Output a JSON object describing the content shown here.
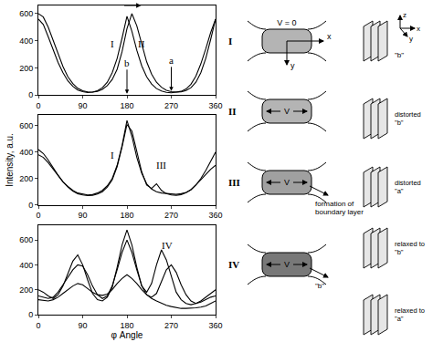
{
  "chart_data": [
    {
      "type": "line",
      "x": [
        0,
        10,
        20,
        30,
        40,
        50,
        60,
        70,
        80,
        90,
        100,
        110,
        120,
        130,
        140,
        150,
        160,
        170,
        180,
        190,
        200,
        210,
        220,
        230,
        240,
        250,
        260,
        270,
        280,
        290,
        300,
        310,
        320,
        330,
        340,
        350,
        360
      ],
      "xlim": [
        0,
        360
      ],
      "xticks": [
        0,
        90,
        180,
        270,
        360
      ],
      "ylim": [
        0,
        660
      ],
      "yticks": [
        0,
        200,
        400,
        600
      ],
      "grid": false,
      "series": [
        {
          "name": "I",
          "color": "#000000",
          "values": [
            560,
            520,
            430,
            330,
            240,
            165,
            105,
            65,
            38,
            26,
            20,
            22,
            32,
            55,
            95,
            165,
            270,
            420,
            580,
            470,
            330,
            215,
            135,
            82,
            48,
            30,
            20,
            17,
            20,
            28,
            45,
            80,
            140,
            230,
            340,
            460,
            560
          ]
        },
        {
          "name": "II",
          "color": "#000000",
          "values": [
            600,
            575,
            500,
            400,
            300,
            210,
            135,
            85,
            50,
            32,
            24,
            22,
            28,
            42,
            70,
            115,
            190,
            320,
            490,
            600,
            510,
            370,
            245,
            155,
            95,
            58,
            36,
            26,
            22,
            24,
            34,
            55,
            95,
            165,
            270,
            410,
            560
          ]
        }
      ],
      "annotations": [
        {
          "text": "I",
          "x": 150,
          "y": 380
        },
        {
          "text": "II",
          "x": 210,
          "y": 380
        },
        {
          "text": "b",
          "x": 180,
          "y": 10,
          "arrow": true
        },
        {
          "text": "a",
          "x": 270,
          "y": 30,
          "arrow": true
        }
      ]
    },
    {
      "type": "line",
      "x": [
        0,
        10,
        20,
        30,
        40,
        50,
        60,
        70,
        80,
        90,
        100,
        110,
        120,
        130,
        140,
        150,
        160,
        170,
        180,
        190,
        200,
        210,
        220,
        230,
        240,
        250,
        260,
        270,
        280,
        290,
        300,
        310,
        320,
        330,
        340,
        350,
        360
      ],
      "xlim": [
        0,
        360
      ],
      "xticks": [
        0,
        90,
        180,
        270,
        360
      ],
      "ylim": [
        0,
        680
      ],
      "yticks": [
        0,
        200,
        400,
        600
      ],
      "grid": false,
      "y_label": "Intensity, a.u.",
      "series": [
        {
          "name": "I",
          "color": "#000000",
          "values": [
            380,
            360,
            320,
            270,
            220,
            175,
            140,
            110,
            90,
            80,
            75,
            78,
            90,
            110,
            145,
            200,
            300,
            450,
            640,
            520,
            360,
            240,
            160,
            120,
            100,
            90,
            85,
            80,
            80,
            85,
            95,
            115,
            150,
            190,
            230,
            270,
            300
          ]
        },
        {
          "name": "III",
          "color": "#000000",
          "values": [
            420,
            390,
            340,
            280,
            225,
            175,
            135,
            105,
            85,
            75,
            70,
            72,
            82,
            100,
            135,
            190,
            290,
            440,
            610,
            560,
            400,
            250,
            150,
            125,
            160,
            110,
            85,
            75,
            72,
            78,
            92,
            115,
            150,
            200,
            260,
            330,
            400
          ]
        }
      ],
      "annotations": [
        {
          "text": "I",
          "x": 150,
          "y": 380
        },
        {
          "text": "III",
          "x": 250,
          "y": 300
        }
      ]
    },
    {
      "type": "line",
      "x": [
        0,
        10,
        20,
        30,
        40,
        50,
        60,
        70,
        80,
        90,
        100,
        110,
        120,
        130,
        140,
        150,
        160,
        170,
        180,
        190,
        200,
        210,
        220,
        230,
        240,
        250,
        260,
        270,
        280,
        290,
        300,
        310,
        320,
        330,
        340,
        350,
        360
      ],
      "xlim": [
        0,
        360
      ],
      "xticks": [
        0,
        90,
        180,
        270,
        360
      ],
      "ylim": [
        0,
        720
      ],
      "yticks": [
        0,
        200,
        400,
        600
      ],
      "grid": false,
      "x_label": "φ Angle",
      "series": [
        {
          "color": "#000000",
          "values": [
            200,
            180,
            150,
            130,
            160,
            230,
            330,
            430,
            480,
            400,
            280,
            170,
            120,
            110,
            140,
            220,
            380,
            560,
            680,
            560,
            380,
            230,
            180,
            250,
            400,
            520,
            440,
            300,
            180,
            120,
            90,
            80,
            90,
            110,
            140,
            170,
            200
          ]
        },
        {
          "color": "#000000",
          "values": [
            150,
            140,
            130,
            140,
            180,
            240,
            300,
            360,
            400,
            390,
            320,
            230,
            160,
            130,
            150,
            230,
            360,
            500,
            600,
            500,
            360,
            230,
            160,
            140,
            170,
            260,
            360,
            400,
            340,
            240,
            160,
            110,
            90,
            100,
            120,
            140,
            150
          ]
        },
        {
          "color": "#000000",
          "values": [
            120,
            115,
            110,
            120,
            140,
            170,
            200,
            230,
            250,
            240,
            210,
            180,
            160,
            155,
            165,
            200,
            250,
            290,
            320,
            290,
            250,
            200,
            160,
            130,
            110,
            90,
            75,
            65,
            55,
            50,
            50,
            50,
            55,
            60,
            70,
            90,
            110
          ]
        }
      ],
      "annotations": [
        {
          "text": "IV",
          "x": 262,
          "y": 560
        }
      ]
    }
  ],
  "diagram": {
    "rows": [
      {
        "label": "I",
        "field": "V = 0",
        "axes": [
          "x",
          "y"
        ],
        "color": "#b4b4b4"
      },
      {
        "label": "II",
        "field": "V",
        "color": "#b4b4b4"
      },
      {
        "label": "III",
        "field": "V",
        "note": [
          "formation of",
          "boundary layer"
        ],
        "color": "#a0a0a0"
      },
      {
        "label": "IV",
        "field": "V",
        "note": [
          "\"b\""
        ],
        "color": "#787878"
      }
    ],
    "structures": [
      {
        "label": [
          "\"b\""
        ],
        "axes": [
          "z",
          "x",
          "y"
        ]
      },
      {
        "label": [
          "distorted",
          "\"b\""
        ]
      },
      {
        "label": [
          "distorted",
          "\"a\""
        ]
      },
      {
        "label": [
          "relaxed to",
          "\"b\""
        ]
      },
      {
        "label": [
          "relaxed to",
          "\"a\""
        ],
        "marker": "plain"
      }
    ]
  }
}
